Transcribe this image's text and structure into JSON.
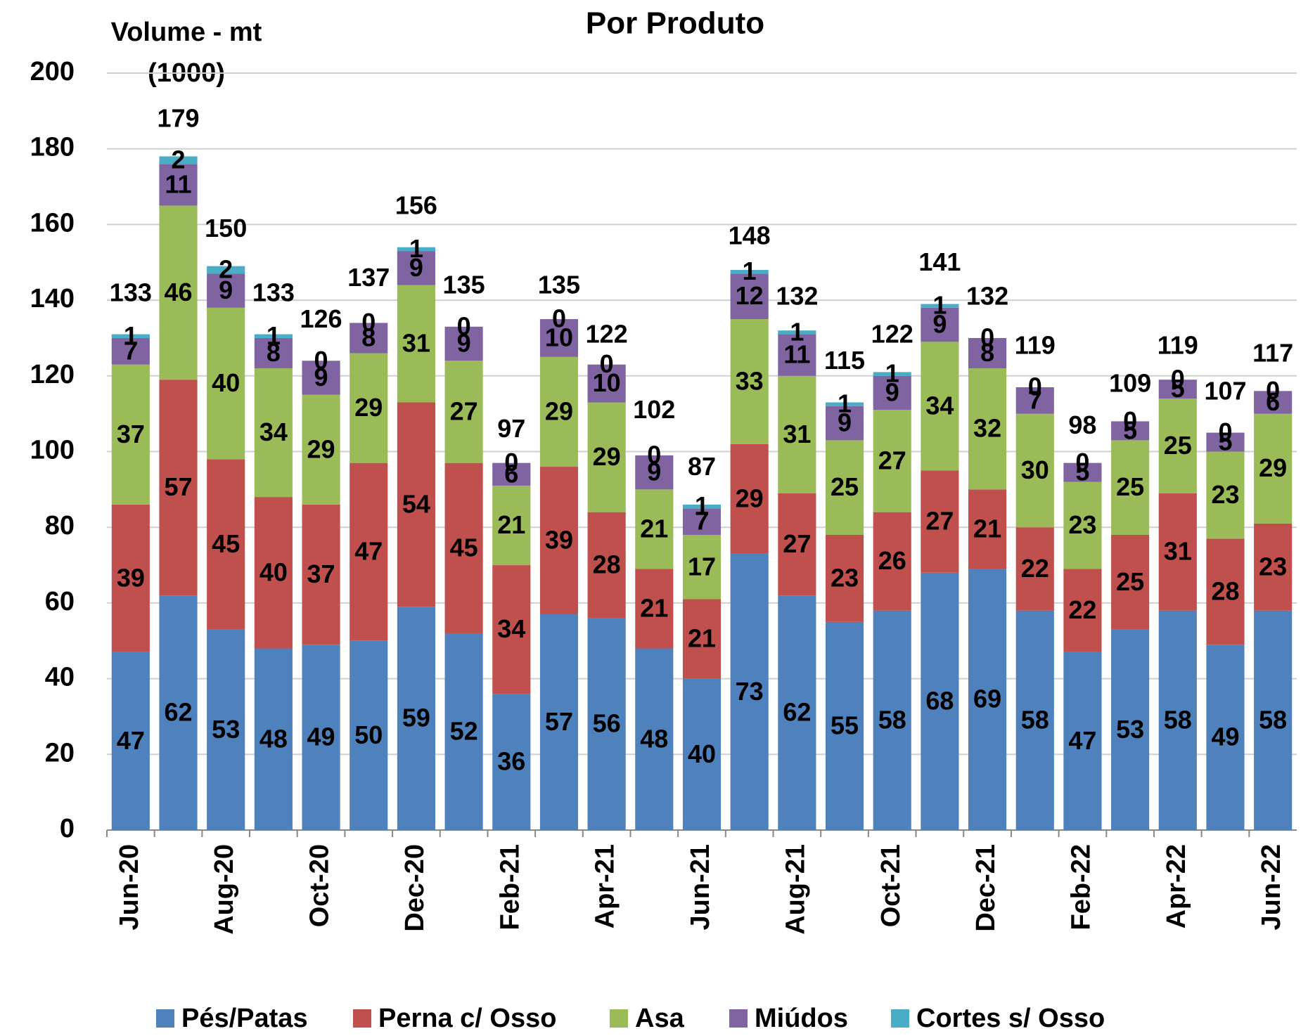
{
  "chart_data": {
    "type": "stacked-bar",
    "title": "Por Produto",
    "y_label": [
      "Volume - mt",
      "(1000)"
    ],
    "categories": [
      "Jun-20",
      null,
      "Aug-20",
      null,
      "Oct-20",
      null,
      "Dec-20",
      null,
      "Feb-21",
      null,
      "Apr-21",
      null,
      "Jun-21",
      null,
      "Aug-21",
      null,
      "Oct-21",
      null,
      "Dec-21",
      null,
      "Feb-22",
      null,
      "Apr-22",
      null,
      "Jun-22"
    ],
    "series": [
      {
        "name": "Pés/Patas",
        "color": "#4f81bd",
        "values": [
          47,
          62,
          53,
          48,
          49,
          50,
          59,
          52,
          36,
          57,
          56,
          48,
          40,
          73,
          62,
          55,
          58,
          68,
          69,
          58,
          47,
          53,
          58,
          49,
          58
        ]
      },
      {
        "name": "Perna c/ Osso",
        "color": "#c0504d",
        "values": [
          39,
          57,
          45,
          40,
          37,
          47,
          54,
          45,
          34,
          39,
          28,
          21,
          21,
          29,
          27,
          23,
          26,
          27,
          21,
          22,
          22,
          25,
          31,
          28,
          23
        ]
      },
      {
        "name": "Asa",
        "color": "#9bbb59",
        "values": [
          37,
          46,
          40,
          34,
          29,
          29,
          31,
          27,
          21,
          29,
          29,
          21,
          17,
          33,
          31,
          25,
          27,
          34,
          32,
          30,
          23,
          25,
          25,
          23,
          29
        ]
      },
      {
        "name": "Miúdos",
        "color": "#8064a2",
        "values": [
          7,
          11,
          9,
          8,
          9,
          8,
          9,
          9,
          6,
          10,
          10,
          9,
          7,
          12,
          11,
          9,
          9,
          9,
          8,
          7,
          5,
          5,
          5,
          5,
          6
        ]
      },
      {
        "name": "Cortes s/ Osso",
        "color": "#4bacc6",
        "values": [
          1,
          2,
          2,
          1,
          0,
          0,
          1,
          0,
          0,
          0,
          0,
          0,
          1,
          1,
          1,
          1,
          1,
          1,
          0,
          0,
          0,
          0,
          0,
          0,
          0
        ]
      }
    ],
    "totals": [
      133,
      179,
      150,
      133,
      126,
      137,
      156,
      135,
      97,
      135,
      122,
      102,
      87,
      148,
      132,
      115,
      122,
      141,
      132,
      119,
      98,
      109,
      119,
      107,
      117
    ],
    "ylim": [
      0,
      200
    ],
    "yticks": [
      0,
      20,
      40,
      60,
      80,
      100,
      120,
      140,
      160,
      180,
      200
    ],
    "grid": true,
    "legend": "bottom"
  }
}
